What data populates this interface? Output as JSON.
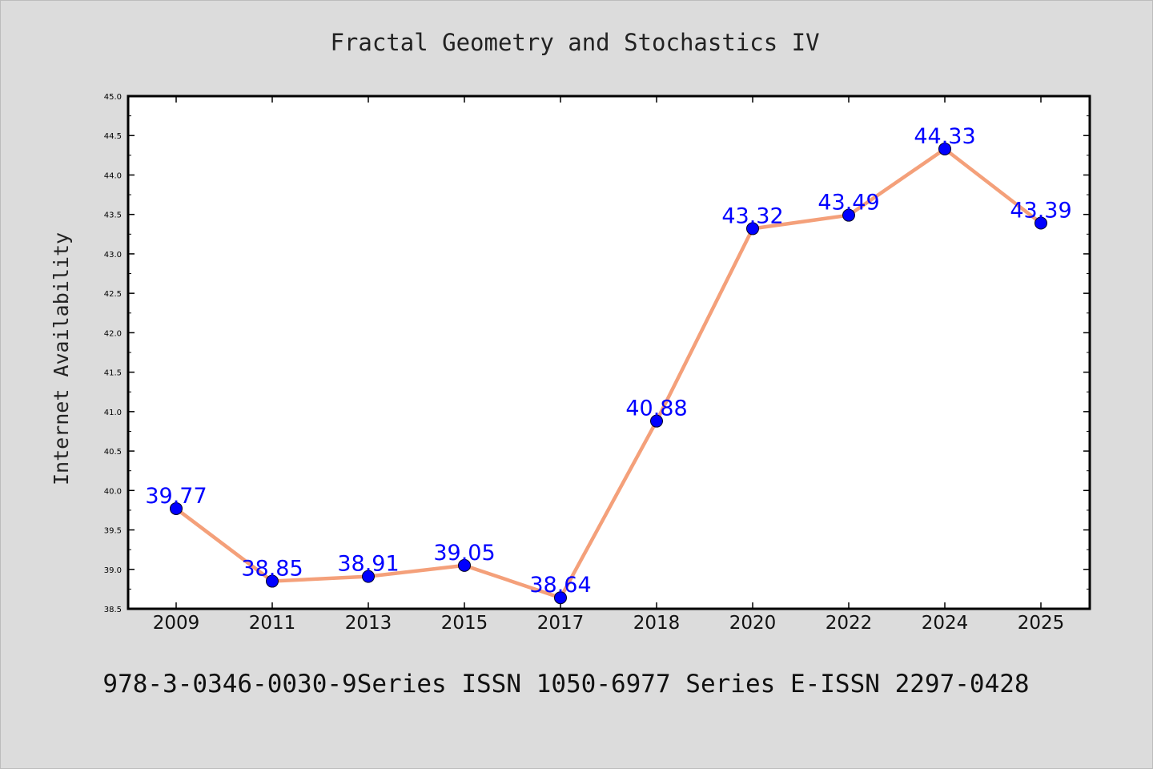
{
  "chart_data": {
    "type": "line",
    "title": "Fractal Geometry and Stochastics IV",
    "ylabel": "Internet Availability",
    "xlabel": "",
    "footer": "978-3-0346-0030-9Series ISSN 1050-6977 Series E-ISSN 2297-0428",
    "categories": [
      "2009",
      "2011",
      "2013",
      "2015",
      "2017",
      "2018",
      "2020",
      "2022",
      "2024",
      "2025"
    ],
    "series": [
      {
        "values": [
          39.77,
          38.85,
          38.91,
          39.05,
          38.64,
          40.88,
          43.32,
          43.49,
          44.33,
          43.39
        ]
      }
    ],
    "data_labels": [
      "39.77",
      "38.85",
      "38.91",
      "39.05",
      "38.64",
      "40.88",
      "43.32",
      "43.49",
      "44.33",
      "43.39"
    ],
    "ylim": [
      38.5,
      45.0
    ],
    "yticks": [
      "38.5",
      "39.0",
      "39.5",
      "40.0",
      "40.5",
      "41.0",
      "41.5",
      "42.0",
      "42.5",
      "43.0",
      "43.5",
      "44.0",
      "44.5",
      "45.0"
    ],
    "grid": false,
    "legend": "none",
    "colors": {
      "line": "#f4a07a",
      "marker": "#0000ff",
      "label": "#0000ff",
      "background": "#dcdcdc",
      "plot_area": "#ffffff"
    }
  }
}
